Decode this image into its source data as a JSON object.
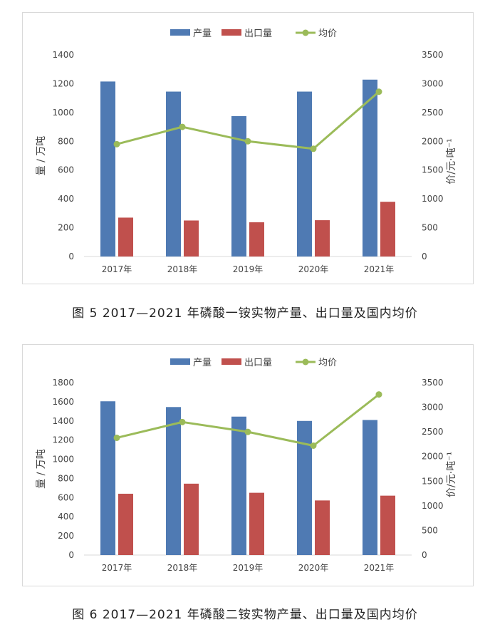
{
  "figures": [
    {
      "caption": "图 5  2017—2021 年磷酸一铵实物产量、出口量及国内均价",
      "chart_data": {
        "type": "bar",
        "categories": [
          "2017年",
          "2018年",
          "2019年",
          "2020年",
          "2021年"
        ],
        "series": [
          {
            "name": "产量",
            "kind": "bar",
            "axis": "left",
            "color": "#4f7ab3",
            "values": [
              1215,
              1145,
              975,
              1145,
              1228
            ]
          },
          {
            "name": "出口量",
            "kind": "bar",
            "axis": "left",
            "color": "#c0504d",
            "values": [
              270,
              250,
              238,
              252,
              380
            ]
          },
          {
            "name": "均价",
            "kind": "line",
            "axis": "right",
            "color": "#9bbb59",
            "values": [
              1950,
              2250,
              2000,
              1870,
              2860
            ]
          }
        ],
        "ylabel": "量 / 万吨",
        "y2label": "价/元·吨⁻¹",
        "ylim": [
          0,
          1400
        ],
        "yticks": [
          0,
          200,
          400,
          600,
          800,
          1000,
          1200,
          1400
        ],
        "y2lim": [
          0,
          3500
        ],
        "y2ticks": [
          0,
          500,
          1000,
          1500,
          2000,
          2500,
          3000,
          3500
        ],
        "legend": "top-center",
        "grid": false
      }
    },
    {
      "caption": "图 6  2017—2021 年磷酸二铵实物产量、出口量及国内均价",
      "chart_data": {
        "type": "bar",
        "categories": [
          "2017年",
          "2018年",
          "2019年",
          "2020年",
          "2021年"
        ],
        "series": [
          {
            "name": "产量",
            "kind": "bar",
            "axis": "left",
            "color": "#4f7ab3",
            "values": [
              1605,
              1545,
              1445,
              1400,
              1410
            ]
          },
          {
            "name": "出口量",
            "kind": "bar",
            "axis": "left",
            "color": "#c0504d",
            "values": [
              640,
              745,
              650,
              570,
              620
            ]
          },
          {
            "name": "均价",
            "kind": "line",
            "axis": "right",
            "color": "#9bbb59",
            "values": [
              2380,
              2700,
              2500,
              2220,
              3260
            ]
          }
        ],
        "ylabel": "量 / 万吨",
        "y2label": "价/元·吨⁻¹",
        "ylim": [
          0,
          1800
        ],
        "yticks": [
          0,
          200,
          400,
          600,
          800,
          1000,
          1200,
          1400,
          1600,
          1800
        ],
        "y2lim": [
          0,
          3500
        ],
        "y2ticks": [
          0,
          500,
          1000,
          1500,
          2000,
          2500,
          3000,
          3500
        ],
        "legend": "top-center",
        "grid": false
      }
    }
  ]
}
